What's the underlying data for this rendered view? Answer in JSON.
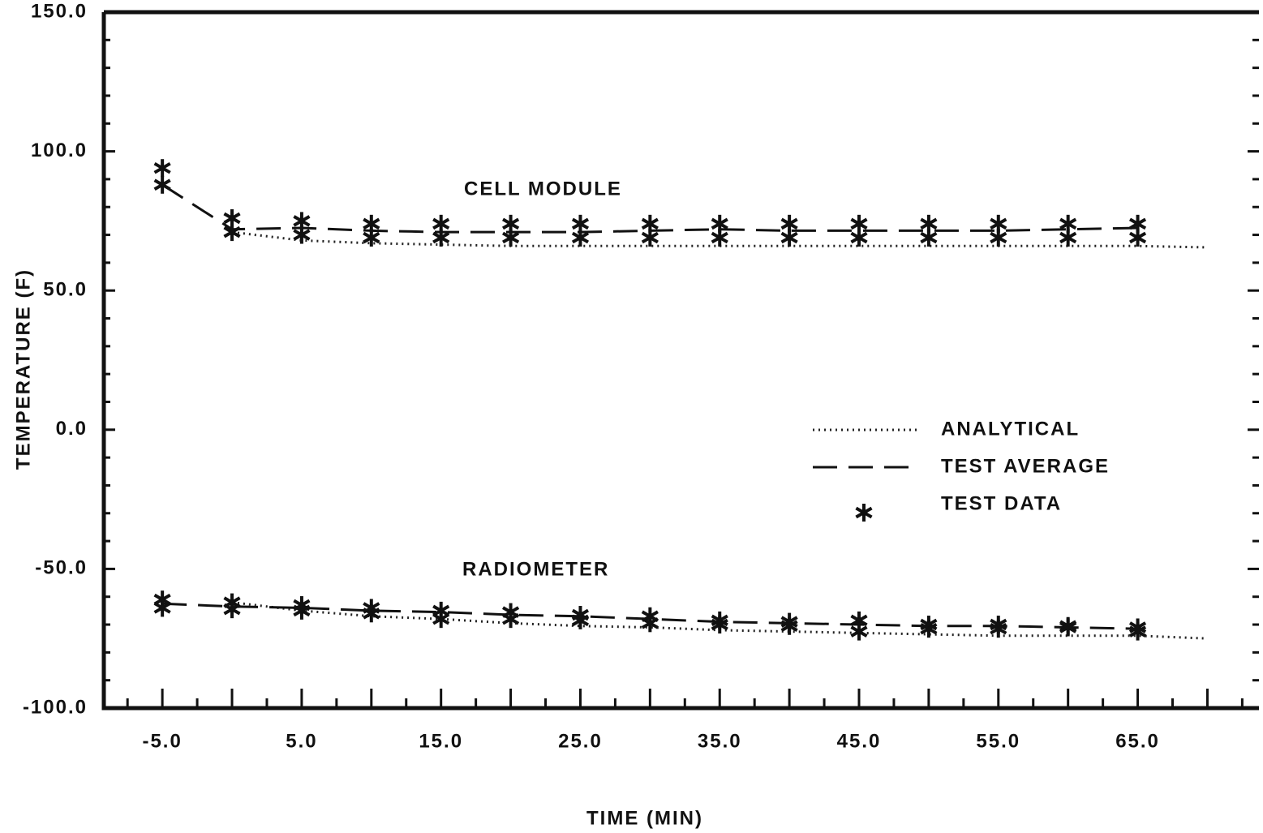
{
  "chart_data": {
    "type": "line",
    "xlabel": "TIME (MIN)",
    "ylabel": "TEMPERATURE (F)",
    "xlim": [
      -9.2,
      73.7
    ],
    "ylim": [
      -100,
      150
    ],
    "xticks": [
      {
        "value": -5,
        "label": "-5.0"
      },
      {
        "value": 5,
        "label": "5.0"
      },
      {
        "value": 15,
        "label": "15.0"
      },
      {
        "value": 25,
        "label": "25.0"
      },
      {
        "value": 35,
        "label": "35.0"
      },
      {
        "value": 45,
        "label": "45.0"
      },
      {
        "value": 55,
        "label": "55.0"
      },
      {
        "value": 65,
        "label": "65.0"
      }
    ],
    "xticks_unlabeled": [
      0,
      10,
      20,
      30,
      40,
      50,
      60,
      70
    ],
    "xticks_minor": [
      -7.5,
      -2.5,
      2.5,
      7.5,
      12.5,
      17.5,
      22.5,
      27.5,
      32.5,
      37.5,
      42.5,
      47.5,
      52.5,
      57.5,
      62.5,
      67.5,
      72.5
    ],
    "yticks": [
      {
        "value": -100,
        "label": "-100.0"
      },
      {
        "value": -50,
        "label": "-50.0"
      },
      {
        "value": 0,
        "label": "0.0"
      },
      {
        "value": 50,
        "label": "50.0"
      },
      {
        "value": 100,
        "label": "100.0"
      },
      {
        "value": 150,
        "label": "150.0"
      }
    ],
    "yticks_minor": [
      -90,
      -80,
      -70,
      -60,
      -40,
      -30,
      -20,
      -10,
      10,
      20,
      30,
      40,
      60,
      70,
      80,
      90,
      110,
      120,
      130,
      140
    ],
    "legend": [
      {
        "label": "ANALYTICAL",
        "style": "dotted"
      },
      {
        "label": "TEST AVERAGE",
        "style": "dashed"
      },
      {
        "label": "TEST DATA",
        "style": "star"
      }
    ],
    "groups": [
      {
        "label": "CELL MODULE",
        "analytical": {
          "x": [
            0,
            5,
            10,
            15,
            20,
            25,
            30,
            35,
            40,
            45,
            50,
            55,
            60,
            65,
            70
          ],
          "values": [
            71,
            68,
            67,
            66.5,
            66,
            66,
            66,
            66,
            66,
            66,
            66,
            66,
            66,
            66,
            65.5
          ]
        },
        "average": {
          "x": [
            -5,
            0,
            5,
            10,
            15,
            20,
            25,
            30,
            35,
            40,
            45,
            50,
            55,
            60,
            65
          ],
          "values": [
            88,
            72,
            72.5,
            71.5,
            71,
            71,
            71,
            71.5,
            72,
            71.5,
            71.5,
            71.5,
            71.5,
            72,
            72.5
          ]
        },
        "data": {
          "x": [
            -5,
            0,
            5,
            10,
            15,
            20,
            25,
            30,
            35,
            40,
            45,
            50,
            55,
            60,
            65
          ],
          "high": [
            94,
            76,
            75,
            74,
            74,
            74,
            74,
            74,
            74,
            74,
            74,
            74,
            74,
            74,
            74
          ],
          "low": [
            88,
            71,
            70,
            69,
            69,
            69,
            69,
            69,
            69,
            69,
            69,
            69,
            69,
            69,
            69
          ]
        }
      },
      {
        "label": "RADIOMETER",
        "analytical": {
          "x": [
            0,
            5,
            10,
            15,
            20,
            25,
            30,
            35,
            40,
            45,
            50,
            55,
            60,
            65,
            70
          ],
          "values": [
            -62,
            -65,
            -67,
            -68,
            -69.5,
            -70.5,
            -71,
            -72,
            -72.5,
            -73,
            -73.5,
            -74,
            -74,
            -74,
            -75
          ]
        },
        "average": {
          "x": [
            -5,
            0,
            5,
            10,
            15,
            20,
            25,
            30,
            35,
            40,
            45,
            50,
            55,
            60,
            65
          ],
          "values": [
            -62.5,
            -63.5,
            -64,
            -65,
            -65.5,
            -66.5,
            -67,
            -68,
            -69,
            -69.5,
            -70,
            -70.5,
            -70.5,
            -71,
            -71.5
          ]
        },
        "data": {
          "x": [
            -5,
            0,
            5,
            10,
            15,
            20,
            25,
            30,
            35,
            40,
            45,
            50,
            55,
            60,
            65
          ],
          "high": [
            -61,
            -62,
            -63,
            -64,
            -65,
            -65.5,
            -66.5,
            -67,
            -68.5,
            -69,
            -68.5,
            -70,
            -70,
            -70.5,
            -71
          ],
          "low": [
            -64,
            -64.5,
            -65,
            -66,
            -68,
            -68,
            -68.5,
            -69.5,
            -70,
            -70.5,
            -72.5,
            -71.5,
            -71.5,
            -71,
            -72.5
          ]
        }
      }
    ]
  }
}
